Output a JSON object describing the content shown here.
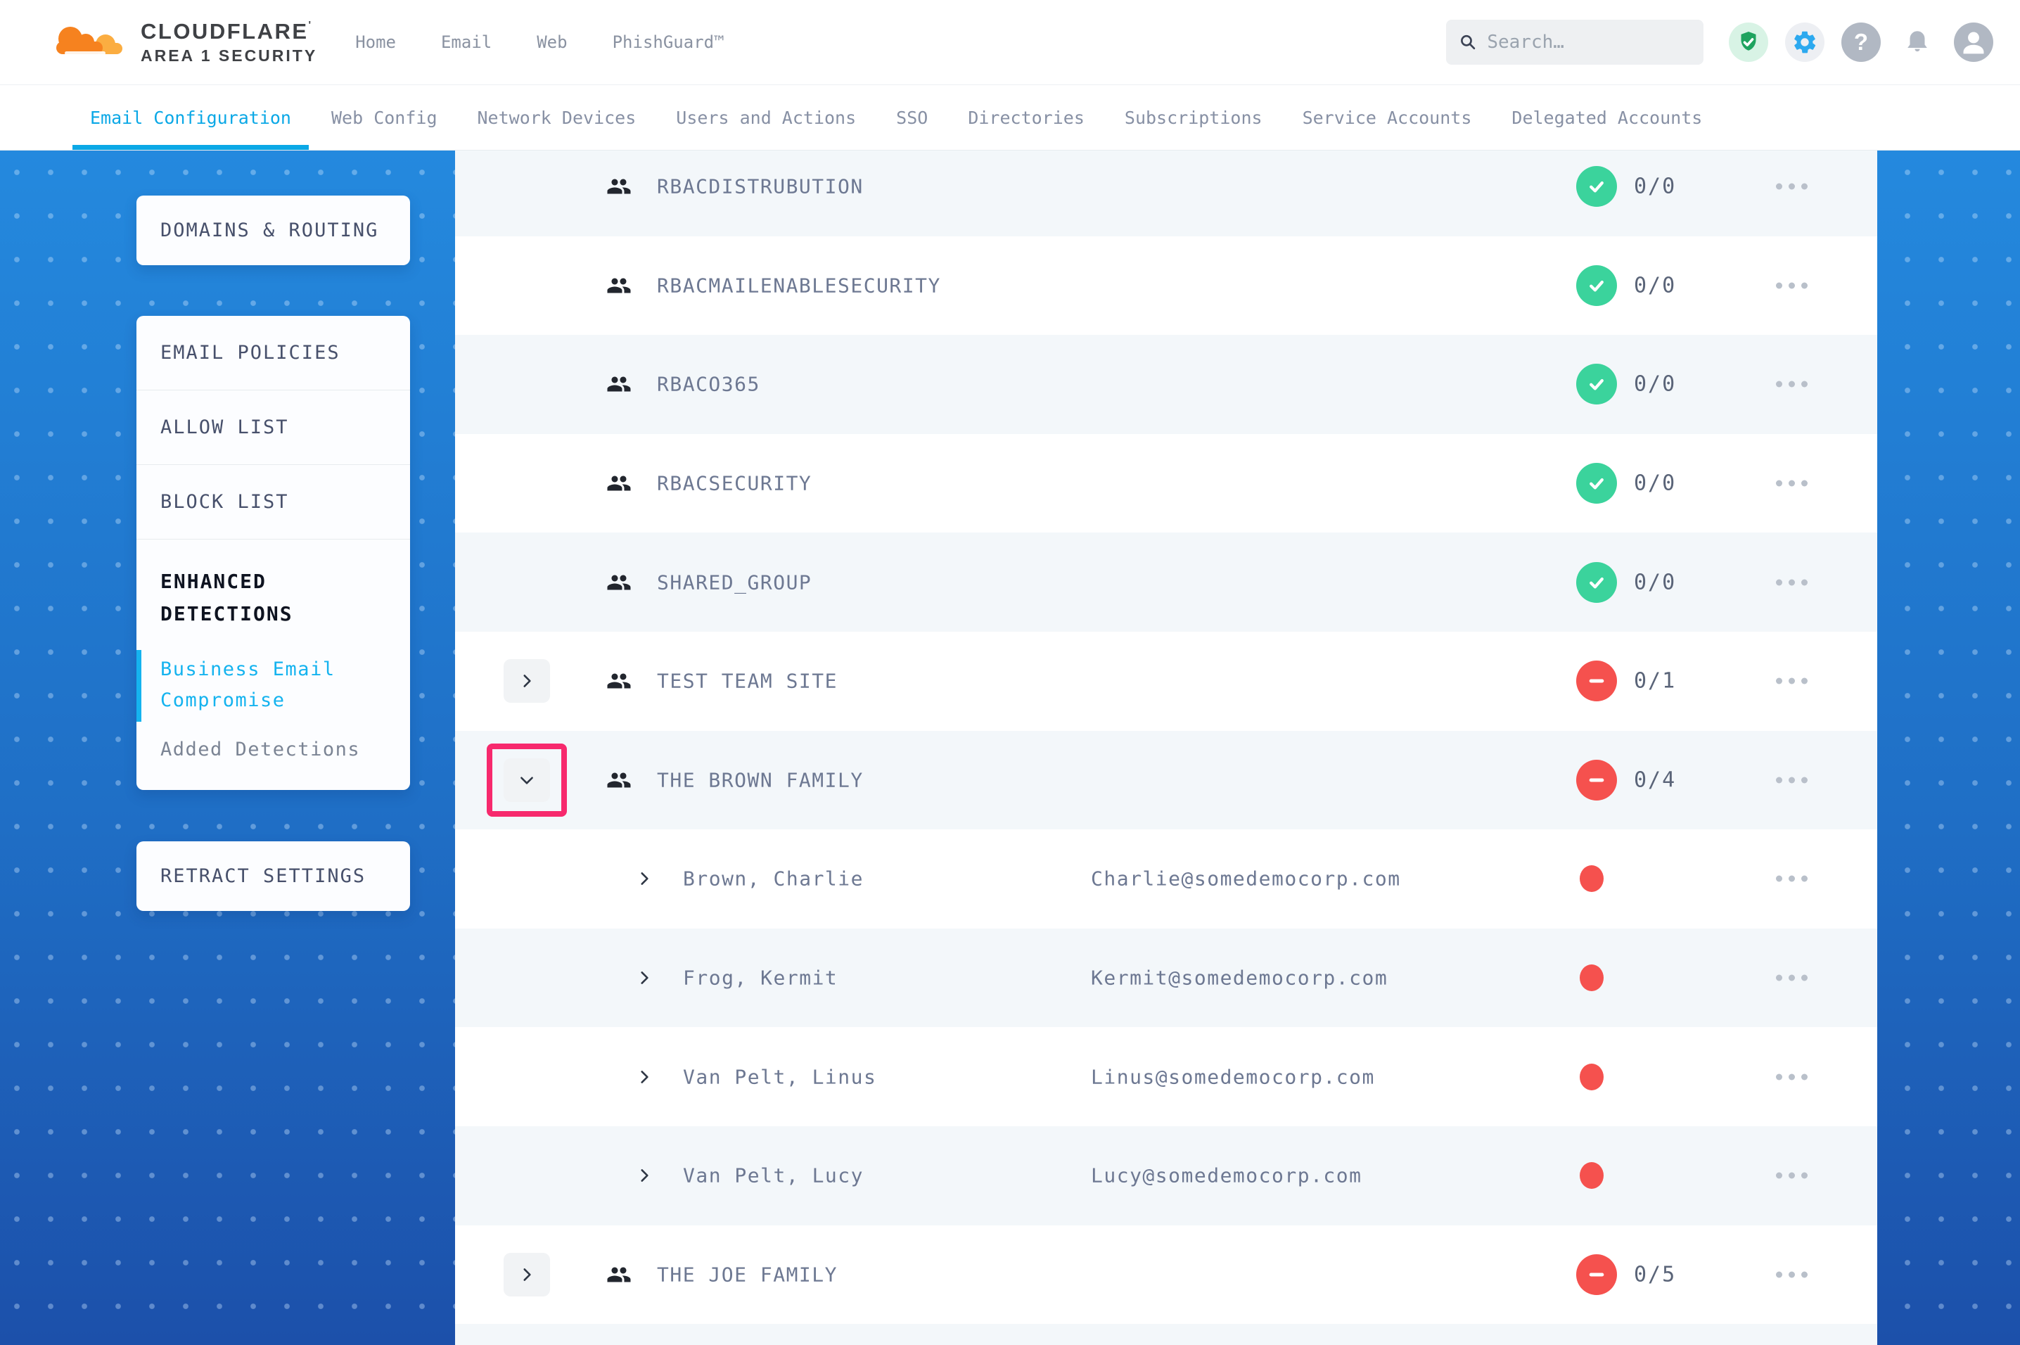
{
  "header": {
    "brand": {
      "line1": "CLOUDFLARE",
      "mark": "'",
      "line2": "AREA 1 SECURITY"
    },
    "nav": [
      {
        "label": "Home"
      },
      {
        "label": "Email"
      },
      {
        "label": "Web"
      },
      {
        "label": "PhishGuard™"
      }
    ],
    "search": {
      "placeholder": "Search…"
    },
    "icons": [
      "shield-check-icon",
      "gear-icon",
      "help-icon",
      "bell-icon",
      "account-icon"
    ]
  },
  "tabs": {
    "items": [
      {
        "label": "Email Configuration",
        "active": true
      },
      {
        "label": "Web Config",
        "active": false
      },
      {
        "label": "Network Devices",
        "active": false
      },
      {
        "label": "Users and Actions",
        "active": false
      },
      {
        "label": "SSO",
        "active": false
      },
      {
        "label": "Directories",
        "active": false
      },
      {
        "label": "Subscriptions",
        "active": false
      },
      {
        "label": "Service Accounts",
        "active": false
      },
      {
        "label": "Delegated Accounts",
        "active": false
      }
    ]
  },
  "sidebar": {
    "cards": [
      {
        "items": [
          {
            "label": "DOMAINS & ROUTING"
          }
        ]
      },
      {
        "items": [
          {
            "label": "EMAIL POLICIES"
          },
          {
            "label": "ALLOW LIST"
          },
          {
            "label": "BLOCK LIST"
          },
          {
            "label": "ENHANCED DETECTIONS",
            "children": [
              {
                "label": "Business Email Compromise",
                "active": true
              },
              {
                "label": "Added Detections",
                "active": false
              }
            ]
          }
        ]
      },
      {
        "items": [
          {
            "label": "RETRACT SETTINGS"
          }
        ]
      }
    ]
  },
  "groups_table": {
    "rows": [
      {
        "type": "group",
        "name": "RBACDISTRUBUTION",
        "status": "ok",
        "count": "0/0",
        "expandable": false
      },
      {
        "type": "group",
        "name": "RBACMAILENABLESECURITY",
        "status": "ok",
        "count": "0/0",
        "expandable": false
      },
      {
        "type": "group",
        "name": "RBACO365",
        "status": "ok",
        "count": "0/0",
        "expandable": false
      },
      {
        "type": "group",
        "name": "RBACSECURITY",
        "status": "ok",
        "count": "0/0",
        "expandable": false
      },
      {
        "type": "group",
        "name": "SHARED_GROUP",
        "status": "ok",
        "count": "0/0",
        "expandable": false
      },
      {
        "type": "group",
        "name": "TEST TEAM SITE",
        "status": "error",
        "count": "0/1",
        "expandable": true,
        "expanded": false
      },
      {
        "type": "group",
        "name": "THE BROWN FAMILY",
        "status": "error",
        "count": "0/4",
        "expandable": true,
        "expanded": true,
        "annotated": true
      },
      {
        "type": "member",
        "name": "Brown, Charlie",
        "email": "Charlie@somedemocorp.com",
        "status": "error-dot"
      },
      {
        "type": "member",
        "name": "Frog, Kermit",
        "email": "Kermit@somedemocorp.com",
        "status": "error-dot"
      },
      {
        "type": "member",
        "name": "Van Pelt, Linus",
        "email": "Linus@somedemocorp.com",
        "status": "error-dot"
      },
      {
        "type": "member",
        "name": "Van Pelt, Lucy",
        "email": "Lucy@somedemocorp.com",
        "status": "error-dot"
      },
      {
        "type": "group",
        "name": "THE JOE FAMILY",
        "status": "error",
        "count": "0/5",
        "expandable": true,
        "expanded": false
      }
    ]
  },
  "colors": {
    "accent_cyan": "#0ba8e6",
    "success_green": "#3bd39c",
    "danger_red": "#f5514e",
    "annotation_pink": "#f7296d",
    "sidebar_blue_top": "#2489de",
    "sidebar_blue_bottom": "#1c50aa"
  }
}
